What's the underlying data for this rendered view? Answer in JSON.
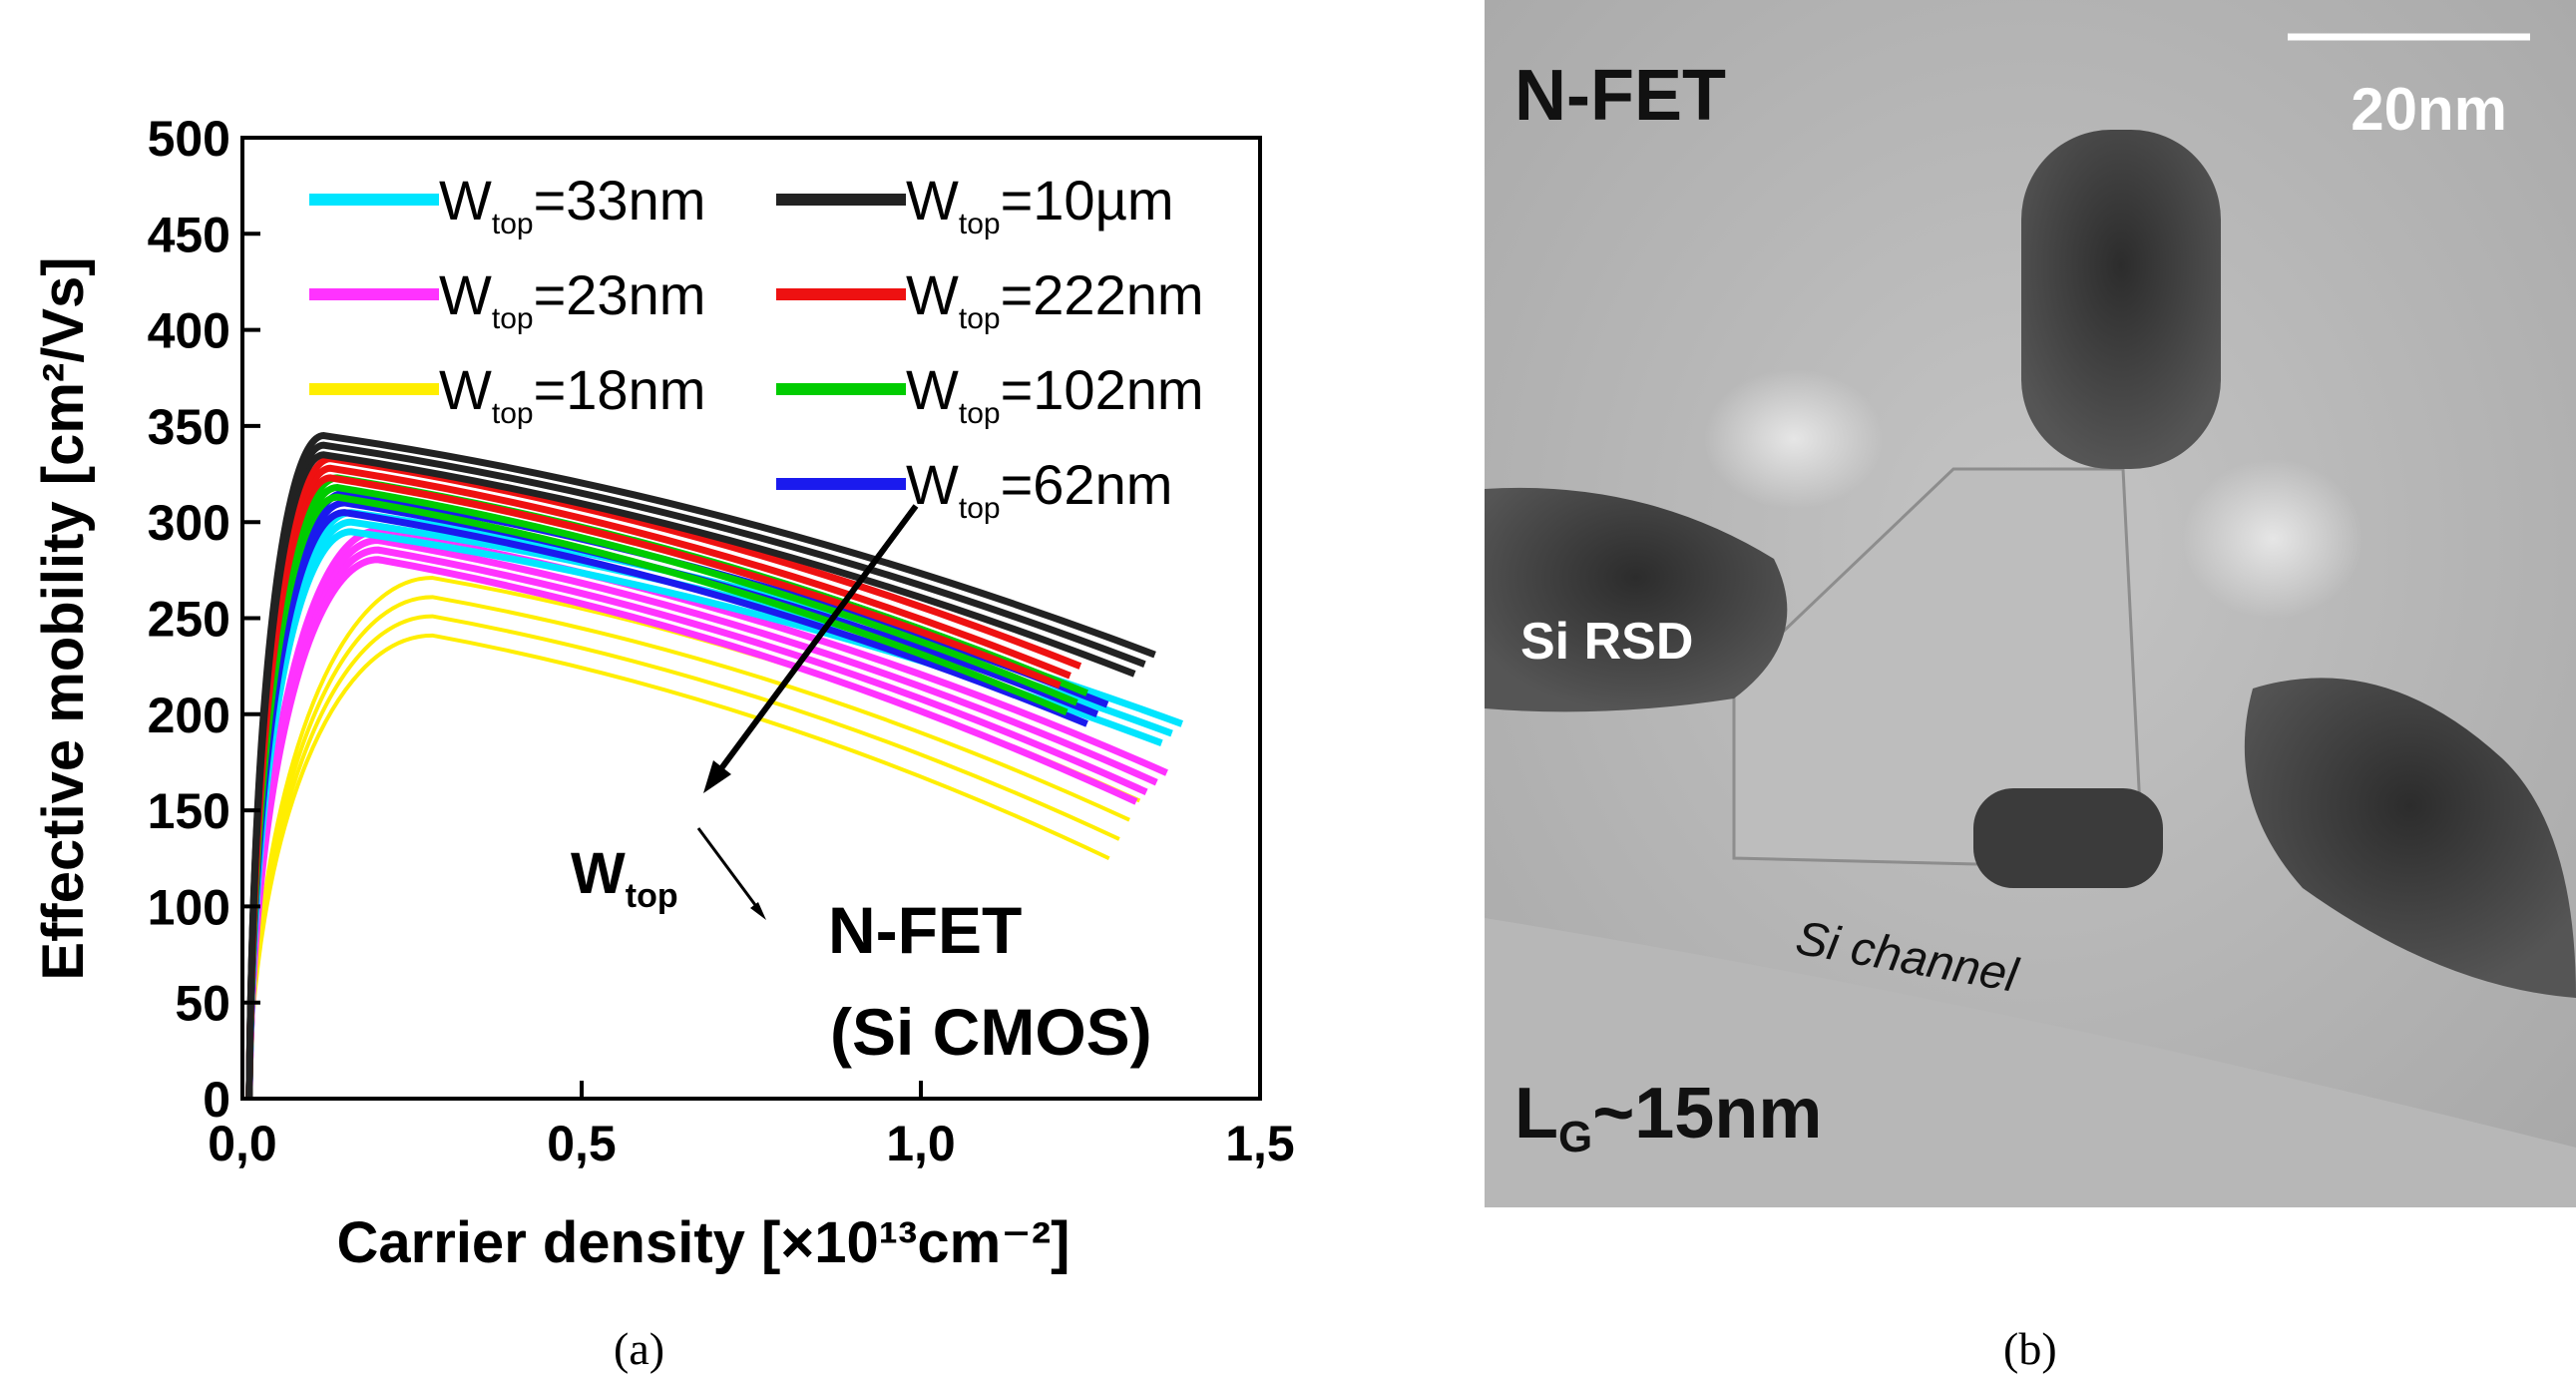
{
  "chart_data": {
    "type": "line",
    "title": "",
    "xlabel": "Carrier density [×10¹³cm⁻²]",
    "ylabel": "Effective mobility [cm²/Vs]",
    "xlim": [
      0.0,
      1.5
    ],
    "ylim": [
      0,
      500
    ],
    "x_ticks": [
      "0,0",
      "0,5",
      "1,0",
      "1,5"
    ],
    "x_tick_values": [
      0.0,
      0.5,
      1.0,
      1.5
    ],
    "y_ticks": [
      0,
      50,
      100,
      150,
      200,
      250,
      300,
      350,
      400,
      450,
      500
    ],
    "grid": false,
    "legend_position": "top",
    "series": [
      {
        "name": "W",
        "sub": "top",
        "suffix": "=33nm",
        "color": "#00e5ff",
        "peak_x": 0.16,
        "peak_y": 300,
        "end_x": 1.37,
        "end_y": 190,
        "count": 3
      },
      {
        "name": "W",
        "sub": "top",
        "suffix": "=23nm",
        "color": "#ff33ff",
        "peak_x": 0.2,
        "peak_y": 288,
        "end_x": 1.34,
        "end_y": 162,
        "count": 4
      },
      {
        "name": "W",
        "sub": "top",
        "suffix": "=18nm",
        "color": "#ffee00",
        "peak_x": 0.28,
        "peak_y": 256,
        "end_x": 1.3,
        "end_y": 140,
        "count": 4
      },
      {
        "name": "W",
        "sub": "top",
        "suffix": "=10µm",
        "color": "#222222",
        "peak_x": 0.12,
        "peak_y": 340,
        "end_x": 1.33,
        "end_y": 226,
        "count": 3
      },
      {
        "name": "W",
        "sub": "top",
        "suffix": "=222nm",
        "color": "#ee1111",
        "peak_x": 0.13,
        "peak_y": 328,
        "end_x": 1.22,
        "end_y": 220,
        "count": 3
      },
      {
        "name": "W",
        "sub": "top",
        "suffix": "=102nm",
        "color": "#00cc00",
        "peak_x": 0.14,
        "peak_y": 318,
        "end_x": 1.23,
        "end_y": 206,
        "count": 3
      },
      {
        "name": "W",
        "sub": "top",
        "suffix": "=62nm",
        "color": "#1a1aee",
        "peak_x": 0.15,
        "peak_y": 310,
        "end_x": 1.26,
        "end_y": 200,
        "count": 3
      }
    ],
    "annotations": {
      "trend_label": "W",
      "trend_sub": "top",
      "device_line1": "N-FET",
      "device_line2": "(Si CMOS)"
    }
  },
  "micrograph": {
    "title": "N-FET",
    "scale_bar": "20nm",
    "left_label": "Si RSD",
    "channel_label": "Si channel",
    "gate_length_main": "L",
    "gate_length_sub": "G",
    "gate_length_value": "~15nm"
  },
  "captions": {
    "a": "(a)",
    "b": "(b)"
  }
}
